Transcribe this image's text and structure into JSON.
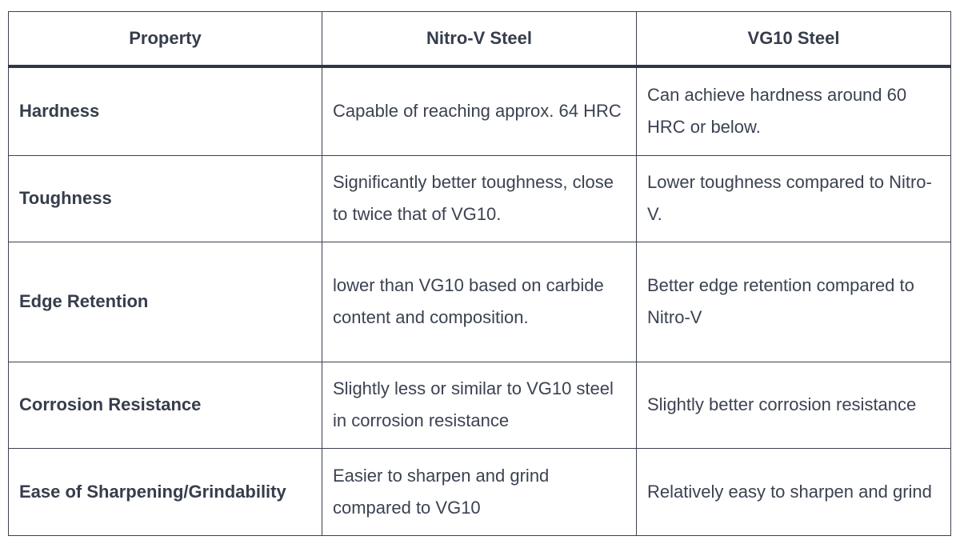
{
  "table": {
    "header": [
      "Property",
      "Nitro-V Steel",
      "VG10 Steel"
    ],
    "rows": [
      [
        "Hardness",
        "Capable of reaching approx. 64 HRC",
        "Can achieve hardness around 60 HRC or below."
      ],
      [
        "Toughness",
        "Significantly better toughness, close to twice that of VG10.",
        "Lower toughness compared to Nitro-V."
      ],
      [
        "Edge Retention",
        "lower than VG10 based on carbide content and composition.",
        "Better edge retention compared to Nitro-V"
      ],
      [
        "Corrosion Resistance",
        "Slightly less or similar to VG10 steel in corrosion resistance",
        "Slightly better corrosion resistance"
      ],
      [
        "Ease of Sharpening/Grindability",
        "Easier to sharpen and grind compared to VG10",
        "Relatively easy to sharpen and grind"
      ]
    ]
  }
}
